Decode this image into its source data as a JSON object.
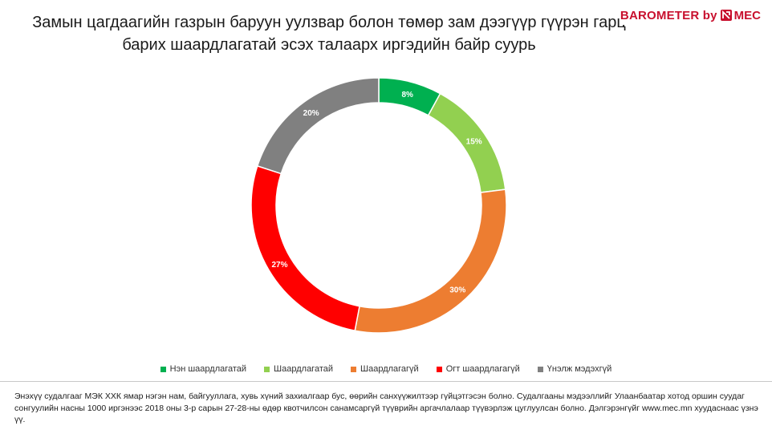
{
  "title": {
    "line1": "Замын цагдаагийн газрын баруун уулзвар болон төмөр зам дээгүүр гүүрэн гарц",
    "line2": "барих шаардлагатай эсэх талаарх иргэдийн байр суурь"
  },
  "brand": {
    "prefix": "BAROMETER by",
    "name": "MEC",
    "color": "#c8102e"
  },
  "chart_data": {
    "type": "pie",
    "variant": "donut",
    "title": "",
    "categories": [
      "Нэн шаардлагатай",
      "Шаардлагатай",
      "Шаардлагагүй",
      "Огт шаардлагагүй",
      "Үнэлж мэдэхгүй"
    ],
    "values": [
      8,
      15,
      30,
      27,
      20
    ],
    "labels": [
      "8%",
      "15%",
      "30%",
      "27%",
      "20%"
    ],
    "colors": [
      "#00b050",
      "#92d050",
      "#ed7d31",
      "#ff0000",
      "#808080"
    ],
    "legend_position": "bottom"
  },
  "footnote": "Энэхүү судалгааг МЭК ХХК ямар нэгэн нам, байгууллага, хувь хүний захиалгаар бус, өөрийн санхүүжилтээр гүйцэтгэсэн болно. Судалгааны мэдээллийг Улаанбаатар хотод оршин суудаг сонгуулийн насны 1000 иргэнээс 2018 оны 3-р сарын 27-28-ны өдөр квотчилсон санамсаргүй түүврийн аргачлалаар түүвэрлэж цуглуулсан болно. Дэлгэрэнгүйг www.mec.mn хуудаснаас үзнэ үү."
}
